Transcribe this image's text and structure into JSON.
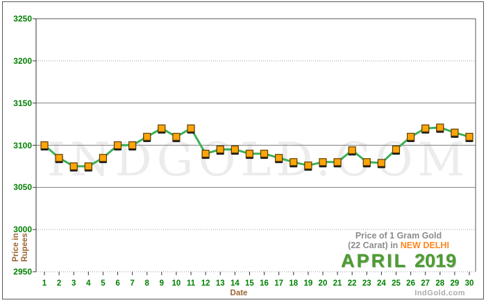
{
  "watermark": "INDGOLD.COM",
  "brand_small": "IndGold.com",
  "caption": {
    "line1": "Price of 1 Gram Gold",
    "line2_prefix": "(22 Carat) in ",
    "city": "NEW DELHI",
    "month": "APRIL",
    "year": "2019"
  },
  "axes": {
    "x_title": "Date",
    "y_title_line1": "Price in",
    "y_title_line2": "Rupees"
  },
  "colors": {
    "tick_label_green": "#008000",
    "axis_title_brown": "#996633",
    "line_green": "#3BAF5A",
    "marker_orange": "#FFA50A",
    "marker_border": "#5A3D00",
    "marker_shadow": "#151515",
    "grid_solid": "#808080",
    "grid_dotted": "#999999",
    "axis_line": "#333333",
    "plot_border": "#555555",
    "city_orange": "#FF8522",
    "caption_gray": "#8C8C8C",
    "month_green": "#4E9C33",
    "watermark_gray": "#ECECEC",
    "brand_gray": "#ABABAB"
  },
  "chart_data": {
    "type": "line",
    "title": "Price of 1 Gram Gold (22 Carat) in NEW DELHI - APRIL 2019",
    "xlabel": "Date",
    "ylabel": "Price in Rupees",
    "x": [
      1,
      2,
      3,
      4,
      5,
      6,
      7,
      8,
      9,
      10,
      11,
      12,
      13,
      14,
      15,
      16,
      17,
      18,
      19,
      20,
      21,
      22,
      23,
      24,
      25,
      26,
      27,
      28,
      29,
      30
    ],
    "values": [
      3100,
      3085,
      3075,
      3075,
      3085,
      3100,
      3100,
      3110,
      3120,
      3110,
      3120,
      3090,
      3095,
      3095,
      3090,
      3090,
      3085,
      3080,
      3076,
      3080,
      3080,
      3094,
      3080,
      3079,
      3095,
      3110,
      3120,
      3121,
      3115,
      3110
    ],
    "ylim": [
      2950,
      3250
    ],
    "ytick_step": 50,
    "grid": true,
    "legend": "none",
    "marker": "square",
    "dotted_gridline_values": [
      3200,
      3000,
      2950
    ]
  }
}
